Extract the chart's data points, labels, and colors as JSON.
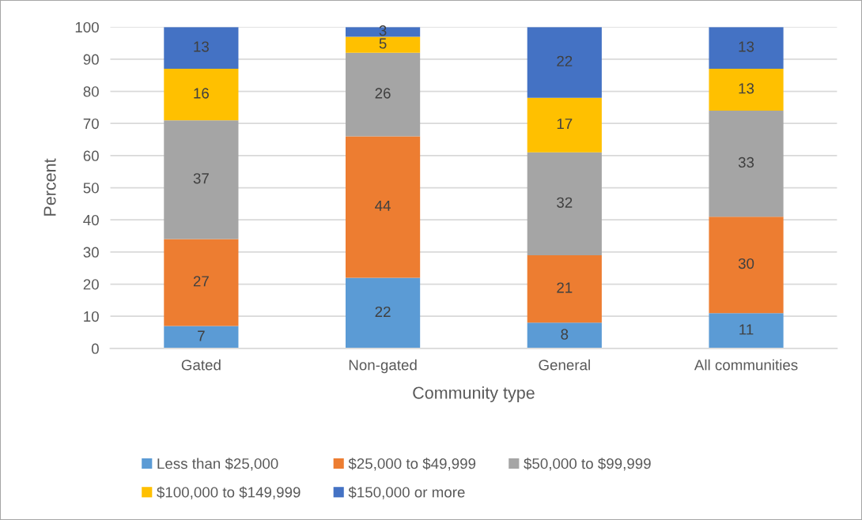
{
  "chart_data": {
    "type": "bar",
    "stacked": true,
    "xlabel": "Community type",
    "ylabel": "Percent",
    "categories": [
      "Gated",
      "Non-gated",
      "General",
      "All communities"
    ],
    "series": [
      {
        "name": "Less than $25,000",
        "color": "#5b9bd5",
        "values": [
          7,
          22,
          8,
          11
        ]
      },
      {
        "name": "$25,000 to $49,999",
        "color": "#ed7d31",
        "values": [
          27,
          44,
          21,
          30
        ]
      },
      {
        "name": "$50,000 to $99,999",
        "color": "#a5a5a5",
        "values": [
          37,
          26,
          32,
          33
        ]
      },
      {
        "name": "$100,000 to $149,999",
        "color": "#ffc000",
        "values": [
          16,
          5,
          17,
          13
        ]
      },
      {
        "name": "$150,000 or more",
        "color": "#4472c4",
        "values": [
          13,
          3,
          22,
          13
        ]
      }
    ],
    "ylim": [
      0,
      100
    ],
    "yticks": [
      0,
      10,
      20,
      30,
      40,
      50,
      60,
      70,
      80,
      90,
      100
    ],
    "grid": "y",
    "legend": "bottom",
    "data_labels": true
  }
}
